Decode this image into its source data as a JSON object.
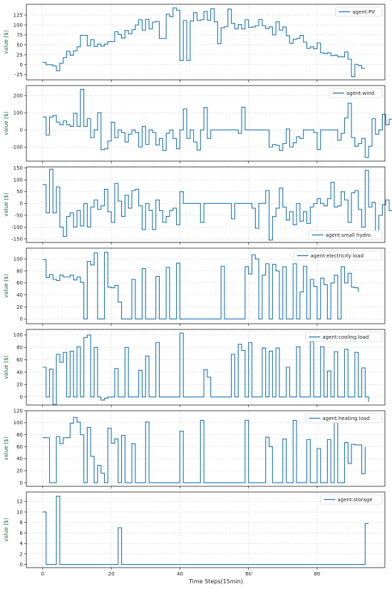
{
  "figure": {
    "xlabel": "Time Steps(15min)",
    "line_color": "#1f77b4",
    "grid_color": "#d0d0d0"
  },
  "chart_data": [
    {
      "type": "line",
      "step": true,
      "ylabel": "value ($)",
      "series": [
        {
          "name": "agent:PV",
          "values": [
            6,
            0,
            0,
            -3,
            -15,
            4,
            18,
            34,
            24,
            35,
            45,
            74,
            74,
            48,
            63,
            46,
            52,
            47,
            52,
            58,
            58,
            83,
            76,
            67,
            86,
            78,
            88,
            100,
            113,
            87,
            114,
            90,
            107,
            109,
            66,
            66,
            127,
            121,
            143,
            137,
            11,
            111,
            11,
            110,
            131,
            111,
            113,
            134,
            112,
            141,
            108,
            53,
            93,
            96,
            140,
            104,
            90,
            101,
            90,
            113,
            94,
            95,
            98,
            114,
            98,
            91,
            95,
            75,
            108,
            87,
            95,
            73,
            54,
            64,
            66,
            74,
            57,
            41,
            45,
            40,
            55,
            30,
            28,
            30,
            23,
            24,
            20,
            20,
            32,
            14,
            -30,
            1,
            -2,
            -9,
            -9
          ]
        }
      ],
      "x_ticks": [
        0,
        20,
        40,
        60,
        80
      ],
      "y_ticks": [
        -25,
        0,
        25,
        50,
        75,
        100,
        125
      ],
      "legend": "top-right",
      "xlim": [
        -4.75,
        99.75
      ],
      "ylim": [
        -38,
        152
      ],
      "grid": true
    },
    {
      "type": "line",
      "step": true,
      "ylabel": "value ($)",
      "series": [
        {
          "name": "agent:wind",
          "values": [
            75,
            -30,
            75,
            84,
            45,
            30,
            52,
            30,
            20,
            97,
            20,
            236,
            20,
            65,
            -45,
            0,
            100,
            -115,
            -110,
            -65,
            45,
            -45,
            0,
            -15,
            -70,
            -25,
            0,
            -15,
            -100,
            20,
            -85,
            0,
            -15,
            -88,
            -50,
            -120,
            -20,
            0,
            -50,
            -110,
            0,
            122,
            -50,
            0,
            -70,
            -118,
            0,
            130,
            -50,
            0,
            0,
            0,
            0,
            0,
            0,
            0,
            0,
            -20,
            132,
            0,
            0,
            0,
            0,
            0,
            0,
            0,
            -100,
            -85,
            -90,
            -120,
            -80,
            5,
            -100,
            -75,
            -40,
            -50,
            0,
            0,
            0,
            -15,
            -115,
            0,
            0,
            0,
            0,
            0,
            -60,
            -20,
            70,
            155,
            -45,
            -95,
            -80,
            -50,
            -160,
            -95,
            65,
            -25,
            0,
            90,
            30,
            62,
            -22,
            30
          ]
        }
      ],
      "x_ticks": [
        0,
        20,
        40,
        60,
        80
      ],
      "y_ticks": [
        -100,
        0,
        100,
        200
      ],
      "legend": "top-right",
      "xlim": [
        -4.75,
        99.75
      ],
      "ylim": [
        -182,
        258
      ],
      "grid": true
    },
    {
      "type": "line",
      "step": true,
      "ylabel": "value ($)",
      "series": [
        {
          "name": "agent:small hydro",
          "values": [
            80,
            -40,
            145,
            -40,
            70,
            -100,
            -140,
            -55,
            -40,
            -100,
            -30,
            -95,
            0,
            -100,
            -15,
            15,
            -25,
            -10,
            60,
            -35,
            -80,
            85,
            10,
            -55,
            35,
            -20,
            55,
            60,
            -10,
            -110,
            0,
            -30,
            -110,
            15,
            -30,
            -80,
            -55,
            -30,
            -20,
            -90,
            50,
            0,
            0,
            0,
            0,
            0,
            -80,
            0,
            0,
            0,
            0,
            0,
            0,
            0,
            0,
            -65,
            0,
            0,
            0,
            0,
            0,
            -20,
            -105,
            0,
            0,
            55,
            -155,
            -55,
            -20,
            65,
            -15,
            -70,
            -35,
            -90,
            0,
            -75,
            -35,
            -85,
            -15,
            0,
            20,
            0,
            -10,
            20,
            90,
            -15,
            -10,
            50,
            15,
            -80,
            45,
            55,
            -25,
            -100,
            140,
            -15,
            5,
            -120,
            -50,
            -5,
            15,
            -30,
            70,
            0,
            65
          ]
        }
      ],
      "x_ticks": [
        0,
        20,
        40,
        60,
        80
      ],
      "y_ticks": [
        -150,
        -100,
        -50,
        0,
        50,
        100,
        150
      ],
      "legend": "bottom-right",
      "xlim": [
        -4.75,
        99.75
      ],
      "ylim": [
        -165,
        155
      ],
      "grid": true
    },
    {
      "type": "line",
      "step": true,
      "ylabel": "value ($)",
      "series": [
        {
          "name": "agent:electricity load",
          "values": [
            99,
            69,
            74,
            66,
            64,
            73,
            70,
            70,
            73,
            65,
            70,
            61,
            0,
            96,
            90,
            110,
            0,
            0,
            111,
            53,
            52,
            56,
            28,
            0,
            0,
            0,
            66,
            0,
            0,
            84,
            0,
            0,
            0,
            71,
            0,
            0,
            86,
            0,
            0,
            93,
            0,
            0,
            0,
            0,
            0,
            0,
            0,
            0,
            0,
            0,
            0,
            0,
            88,
            0,
            0,
            0,
            0,
            0,
            0,
            87,
            75,
            107,
            100,
            0,
            73,
            92,
            0,
            91,
            80,
            0,
            87,
            0,
            0,
            92,
            0,
            45,
            88,
            0,
            66,
            54,
            0,
            68,
            57,
            0,
            60,
            73,
            0,
            87,
            60,
            76,
            53,
            52,
            45
          ]
        }
      ],
      "x_ticks": [
        0,
        20,
        40,
        60,
        80
      ],
      "y_ticks": [
        0,
        20,
        40,
        60,
        80,
        100
      ],
      "legend": "top-right",
      "xlim": [
        -4.75,
        99.75
      ],
      "ylim": [
        -8,
        118
      ],
      "grid": true
    },
    {
      "type": "line",
      "step": true,
      "ylabel": "value ($)",
      "series": [
        {
          "name": "agent:cooling load",
          "values": [
            48,
            0,
            45,
            -12,
            69,
            56,
            72,
            0,
            74,
            0,
            81,
            0,
            96,
            100,
            0,
            80,
            0,
            -5,
            -2,
            0,
            0,
            46,
            0,
            0,
            80,
            0,
            0,
            0,
            43,
            0,
            66,
            0,
            0,
            88,
            0,
            0,
            0,
            0,
            0,
            0,
            103,
            0,
            0,
            0,
            0,
            0,
            0,
            44,
            32,
            0,
            0,
            0,
            0,
            0,
            0,
            69,
            0,
            85,
            75,
            0,
            88,
            0,
            0,
            0,
            79,
            0,
            74,
            0,
            79,
            0,
            0,
            48,
            0,
            0,
            81,
            0,
            0,
            0,
            89,
            0,
            0,
            81,
            0,
            42,
            0,
            73,
            0,
            0,
            77,
            0,
            0,
            72,
            0,
            47,
            0,
            -8
          ]
        }
      ],
      "x_ticks": [
        0,
        20,
        40,
        60,
        80
      ],
      "y_ticks": [
        0,
        20,
        40,
        60,
        80,
        100
      ],
      "legend": "top-right",
      "xlim": [
        -4.75,
        99.75
      ],
      "ylim": [
        -13,
        109
      ],
      "grid": true
    },
    {
      "type": "line",
      "step": true,
      "ylabel": "value ($)",
      "series": [
        {
          "name": "agent:heating load",
          "values": [
            75,
            75,
            0,
            0,
            77,
            65,
            75,
            75,
            99,
            109,
            101,
            80,
            0,
            92,
            44,
            0,
            29,
            16,
            0,
            91,
            66,
            73,
            0,
            79,
            0,
            0,
            65,
            0,
            0,
            0,
            101,
            0,
            0,
            0,
            0,
            0,
            0,
            0,
            0,
            0,
            86,
            0,
            0,
            0,
            0,
            0,
            104,
            0,
            0,
            0,
            0,
            0,
            0,
            0,
            0,
            0,
            0,
            0,
            0,
            104,
            0,
            0,
            0,
            0,
            0,
            76,
            60,
            0,
            0,
            0,
            73,
            0,
            0,
            104,
            0,
            0,
            0,
            72,
            0,
            0,
            57,
            0,
            0,
            72,
            0,
            101,
            0,
            0,
            67,
            32,
            64,
            63,
            63,
            15,
            60
          ]
        }
      ],
      "x_ticks": [
        0,
        20,
        40,
        60,
        80
      ],
      "y_ticks": [
        0,
        20,
        40,
        60,
        80,
        100,
        120
      ],
      "legend": "top-right",
      "xlim": [
        -4.75,
        99.75
      ],
      "ylim": [
        -6,
        120
      ],
      "grid": true
    },
    {
      "type": "line",
      "step": true,
      "ylabel": "value ($)",
      "series": [
        {
          "name": "agent:storage",
          "values": [
            10,
            0,
            0,
            0,
            13,
            0,
            0,
            0,
            0,
            0,
            0,
            0,
            0,
            0,
            0,
            0,
            0,
            0,
            0,
            0,
            0,
            0,
            7,
            0,
            0,
            0,
            0,
            0,
            0,
            0,
            0,
            0,
            0,
            0,
            0,
            0,
            0,
            0,
            0,
            0,
            0,
            0,
            0,
            0,
            0,
            0,
            0,
            0,
            0,
            0,
            0,
            0,
            0,
            0,
            0,
            0,
            0,
            0,
            0,
            0,
            0,
            0,
            0,
            0,
            0,
            0,
            0,
            0,
            0,
            0,
            0,
            0,
            0,
            0,
            0,
            0,
            0,
            0,
            0,
            0,
            0,
            0,
            0,
            0,
            0,
            0,
            0,
            0,
            0,
            0,
            0,
            0,
            0,
            0,
            7.8,
            7.8
          ]
        }
      ],
      "x_ticks": [
        0,
        20,
        40,
        60,
        80
      ],
      "y_ticks": [
        0,
        2,
        4,
        6,
        8,
        10,
        12
      ],
      "legend": "top-right",
      "xlim": [
        -4.75,
        99.75
      ],
      "ylim": [
        -0.6,
        13.8
      ],
      "grid": true
    }
  ]
}
